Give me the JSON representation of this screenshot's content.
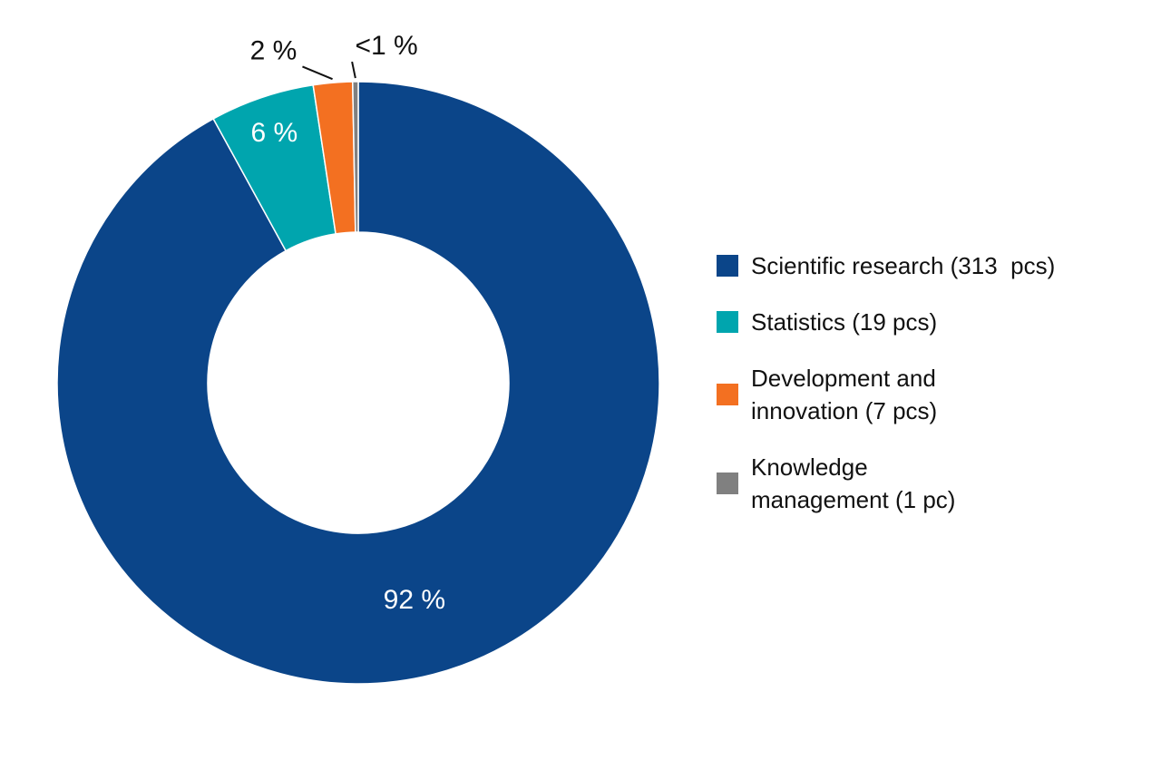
{
  "chart_data": {
    "type": "donut",
    "categories": [
      "Scientific research (313  pcs)",
      "Statistics (19 pcs)",
      "Development and innovation (7 pcs)",
      "Knowledge management (1 pc)"
    ],
    "values": [
      92.1,
      5.6,
      2.1,
      0.3
    ],
    "value_labels": [
      "92 %",
      "6 %",
      "2 %",
      "<1 %"
    ],
    "colors": [
      "#0b4589",
      "#00a5ae",
      "#f37021",
      "#808080"
    ]
  }
}
